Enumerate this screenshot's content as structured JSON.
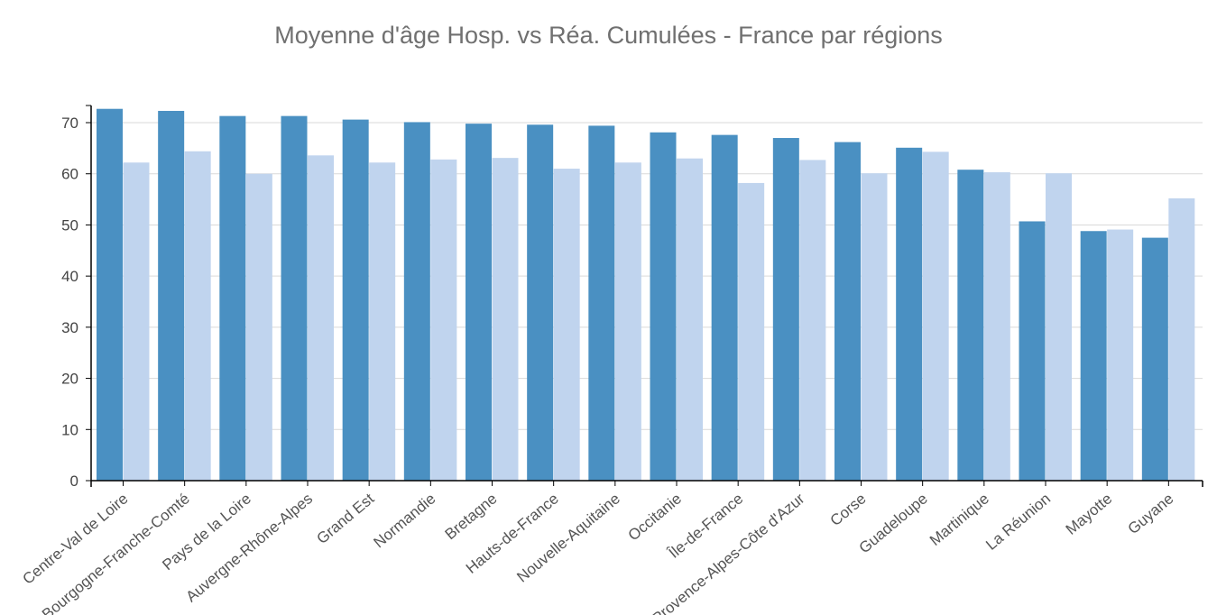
{
  "chart_data": {
    "type": "bar",
    "title": "Moyenne d'âge Hosp. vs Réa. Cumulées - France par régions",
    "xlabel": "",
    "ylabel": "",
    "ylim": [
      0,
      73
    ],
    "yticks": [
      0,
      10,
      20,
      30,
      40,
      50,
      60,
      70
    ],
    "grid": true,
    "categories": [
      "Centre-Val de Loire",
      "Bourgogne-Franche-Comté",
      "Pays de la Loire",
      "Auvergne-Rhône-Alpes",
      "Grand Est",
      "Normandie",
      "Bretagne",
      "Hauts-de-France",
      "Nouvelle-Aquitaine",
      "Occitanie",
      "Île-de-France",
      "Provence-Alpes-Côte d'Azur",
      "Corse",
      "Guadeloupe",
      "Martinique",
      "La Réunion",
      "Mayotte",
      "Guyane"
    ],
    "series": [
      {
        "color": "#4a90c2",
        "values": [
          72.7,
          72.3,
          71.3,
          71.3,
          70.6,
          70.1,
          69.8,
          69.6,
          69.4,
          68.1,
          67.6,
          67.0,
          66.2,
          65.1,
          60.8,
          50.7,
          48.8,
          47.5
        ]
      },
      {
        "color": "#c0d4ee",
        "values": [
          62.2,
          64.4,
          60.0,
          63.6,
          62.2,
          62.8,
          63.1,
          61.0,
          62.2,
          63.0,
          58.2,
          62.7,
          60.1,
          64.3,
          60.3,
          60.1,
          49.1,
          55.2
        ]
      }
    ]
  }
}
